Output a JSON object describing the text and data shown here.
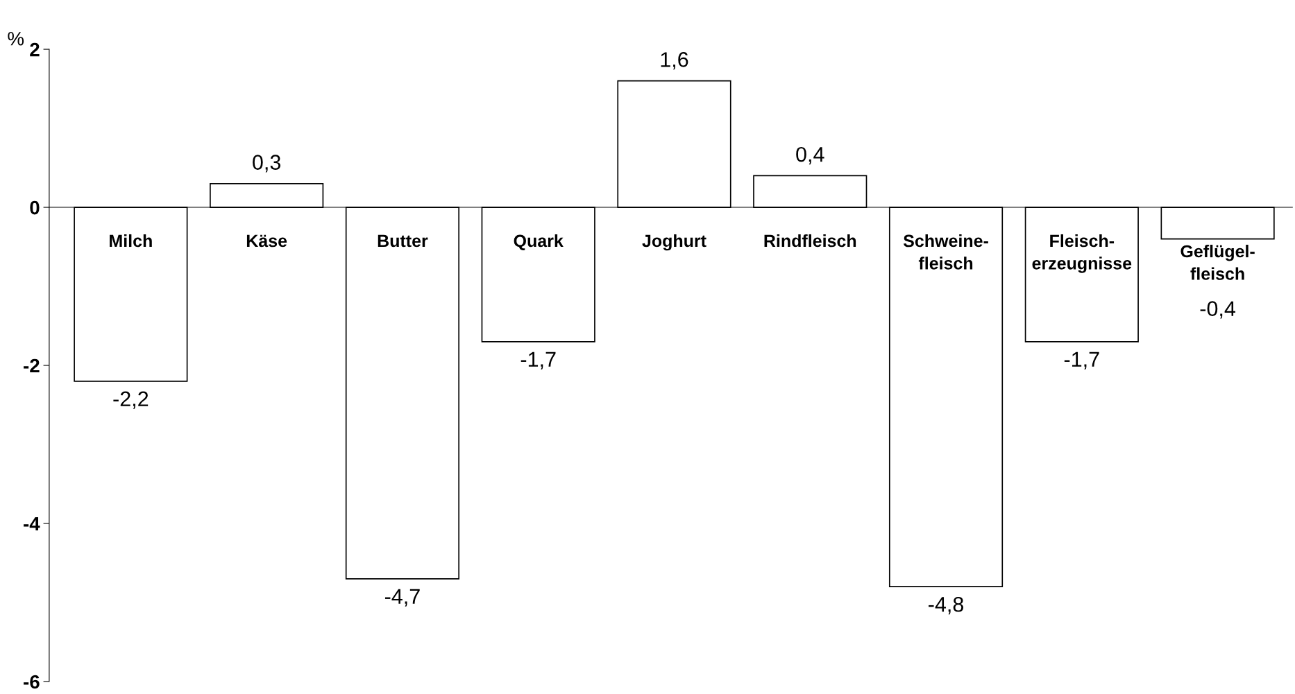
{
  "chart_data": {
    "type": "bar",
    "ylabel": "%",
    "categories": [
      "Milch",
      "Käse",
      "Butter",
      "Quark",
      "Joghurt",
      "Rindfleisch",
      "Schweine-\nfleisch",
      "Fleisch-\nerzeugnisse",
      "Geflügel-\nfleisch"
    ],
    "values": [
      -2.2,
      0.3,
      -4.7,
      -1.7,
      1.6,
      0.4,
      -4.8,
      -1.7,
      -0.4
    ],
    "value_labels": [
      "-2,2",
      "0,3",
      "-4,7",
      "-1,7",
      "1,6",
      "0,4",
      "-4,8",
      "-1,7",
      "-0,4"
    ],
    "color": "#ffffff",
    "ylim": [
      -6,
      2
    ],
    "yticks": [
      -6,
      -4,
      -2,
      0,
      2
    ],
    "grid": false
  }
}
